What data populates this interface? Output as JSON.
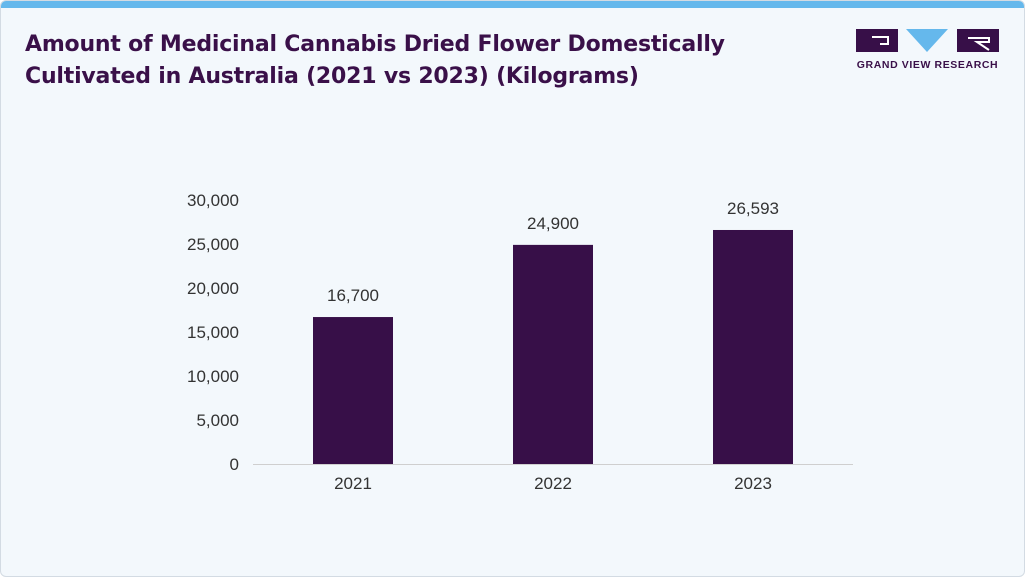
{
  "header": {
    "title": "Amount of Medicinal Cannabis Dried Flower Domestically Cultivated in Australia (2021 vs 2023) (Kilograms)"
  },
  "logo": {
    "text": "GRAND VIEW RESEARCH"
  },
  "colors": {
    "bar": "#370f48",
    "accent": "#65b8ec",
    "title": "#3a1049",
    "background": "#f3f8fc"
  },
  "chart_data": {
    "type": "bar",
    "categories": [
      "2021",
      "2022",
      "2023"
    ],
    "values": [
      16700,
      24900,
      26593
    ],
    "data_labels": [
      "16,700",
      "24,900",
      "26,593"
    ],
    "y_ticks": [
      0,
      5000,
      10000,
      15000,
      20000,
      25000,
      30000
    ],
    "y_tick_labels": [
      "0",
      "5,000",
      "10,000",
      "15,000",
      "20,000",
      "25,000",
      "30,000"
    ],
    "ylim": [
      0,
      30000
    ],
    "grid": false,
    "legend": "none"
  }
}
